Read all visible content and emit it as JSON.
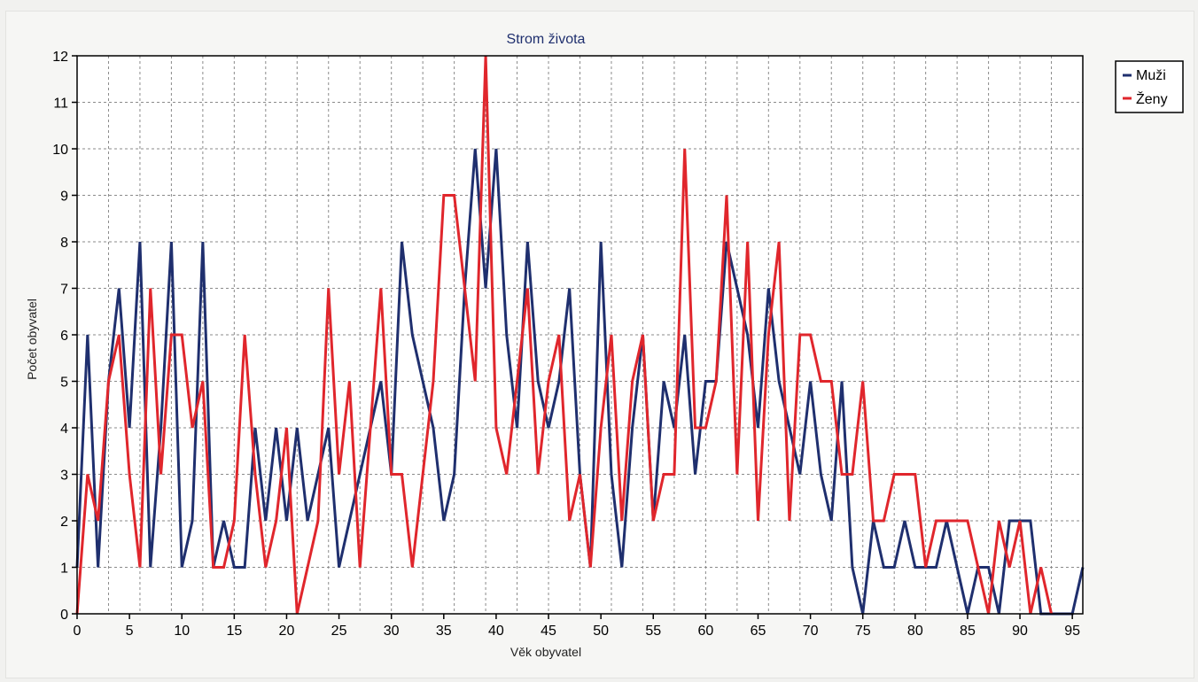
{
  "chart_data": {
    "type": "line",
    "title": "Strom života",
    "xlabel": "Věk obyvatel",
    "ylabel": "Počet obyvatel",
    "xlim": [
      0,
      96
    ],
    "ylim": [
      0,
      12
    ],
    "xticks": [
      0,
      5,
      10,
      15,
      20,
      25,
      30,
      35,
      40,
      45,
      50,
      55,
      60,
      65,
      70,
      75,
      80,
      85,
      90,
      95
    ],
    "yticks": [
      0,
      1,
      2,
      3,
      4,
      5,
      6,
      7,
      8,
      9,
      10,
      11,
      12
    ],
    "grid": true,
    "legend_position": "right",
    "x": [
      0,
      1,
      2,
      3,
      4,
      5,
      6,
      7,
      8,
      9,
      10,
      11,
      12,
      13,
      14,
      15,
      16,
      17,
      18,
      19,
      20,
      21,
      22,
      23,
      24,
      25,
      26,
      27,
      28,
      29,
      30,
      31,
      32,
      33,
      34,
      35,
      36,
      37,
      38,
      39,
      40,
      41,
      42,
      43,
      44,
      45,
      46,
      47,
      48,
      49,
      50,
      51,
      52,
      53,
      54,
      55,
      56,
      57,
      58,
      59,
      60,
      61,
      62,
      63,
      64,
      65,
      66,
      67,
      68,
      69,
      70,
      71,
      72,
      73,
      74,
      75,
      76,
      77,
      78,
      79,
      80,
      81,
      82,
      83,
      84,
      85,
      86,
      87,
      88,
      89,
      90,
      91,
      92,
      93,
      94,
      95,
      96
    ],
    "series": [
      {
        "name": "Muži",
        "color": "#1f2f6e",
        "values": [
          1,
          6,
          1,
          5,
          7,
          4,
          8,
          1,
          4,
          8,
          1,
          2,
          8,
          1,
          2,
          1,
          1,
          4,
          2,
          4,
          2,
          4,
          2,
          3,
          4,
          1,
          2,
          3,
          4,
          5,
          3,
          8,
          6,
          5,
          4,
          2,
          3,
          7,
          10,
          7,
          10,
          6,
          4,
          8,
          5,
          4,
          5,
          7,
          3,
          1,
          8,
          3,
          1,
          4,
          6,
          2,
          5,
          4,
          6,
          3,
          5,
          5,
          8,
          7,
          6,
          4,
          7,
          5,
          4,
          3,
          5,
          3,
          2,
          5,
          1,
          0,
          2,
          1,
          1,
          2,
          1,
          1,
          1,
          2,
          1,
          0,
          1,
          1,
          0,
          2,
          2,
          2,
          0,
          0,
          0,
          0,
          1
        ]
      },
      {
        "name": "Ženy",
        "color": "#e0262c",
        "values": [
          0,
          3,
          2,
          5,
          6,
          3,
          1,
          7,
          3,
          6,
          6,
          4,
          5,
          1,
          1,
          2,
          6,
          3,
          1,
          2,
          4,
          0,
          1,
          2,
          7,
          3,
          5,
          1,
          4,
          7,
          3,
          3,
          1,
          3,
          5,
          9,
          9,
          7,
          5,
          12,
          4,
          3,
          5,
          7,
          3,
          5,
          6,
          2,
          3,
          1,
          4,
          6,
          2,
          5,
          6,
          2,
          3,
          3,
          10,
          4,
          4,
          5,
          9,
          3,
          8,
          2,
          6,
          8,
          2,
          6,
          6,
          5,
          5,
          3,
          3,
          5,
          2,
          2,
          3,
          3,
          3,
          1,
          2,
          2,
          2,
          2,
          1,
          0,
          2,
          1,
          2,
          0,
          1,
          0,
          null,
          null,
          null
        ]
      }
    ]
  }
}
